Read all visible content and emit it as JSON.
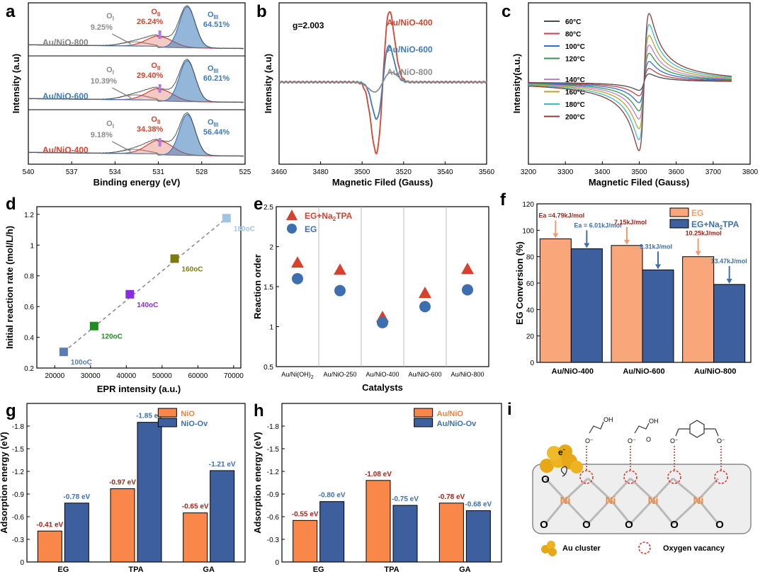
{
  "panels": {
    "a": "a",
    "b": "b",
    "c": "c",
    "d": "d",
    "e": "e",
    "f": "f",
    "g": "g",
    "h": "h",
    "i": "i"
  },
  "chart_data": [
    {
      "id": "a",
      "type": "line",
      "xlabel": "Binding energy (eV)",
      "ylabel": "Intensity (a.u)",
      "xlim": [
        540,
        525
      ],
      "xticks": [
        540,
        537,
        534,
        531,
        528,
        525
      ],
      "subplots": [
        {
          "sample": "Au/NiO-800",
          "O_I": "9.25%",
          "O_II": "26.24%",
          "O_III": "64.51%"
        },
        {
          "sample": "Au/NiO-600",
          "O_I": "10.39%",
          "O_II": "29.40%",
          "O_III": "60.21%"
        },
        {
          "sample": "Au/NiO-400",
          "O_I": "9.18%",
          "O_II": "34.38%",
          "O_III": "56.44%"
        }
      ],
      "peak_names": {
        "O_I": "O",
        "O_II": "O",
        "O_III": "O",
        "sub_I": "I",
        "sub_II": "II",
        "sub_III": "III"
      },
      "colors": {
        "O_I": "#8c8c8c",
        "O_II": "#d8412e",
        "O_III": "#3d7ab8",
        "sample_800": "#808080",
        "sample_600": "#3d7ab8",
        "sample_400": "#d8412e"
      }
    },
    {
      "id": "b",
      "type": "line",
      "xlabel": "Magnetic Filed (Gauss)",
      "ylabel": "Intensity (a.u)",
      "xlim": [
        3460,
        3560
      ],
      "xticks": [
        3460,
        3480,
        3500,
        3520,
        3540,
        3560
      ],
      "annotation": "g=2.003",
      "series": [
        {
          "name": "Au/NiO-400",
          "color": "#d8412e",
          "amp": 1.0,
          "center": 3510,
          "width": 3.2
        },
        {
          "name": "Au/NiO-600",
          "color": "#3d7ab8",
          "amp": 0.52,
          "center": 3510,
          "width": 3.0
        },
        {
          "name": "Au/NiO-800",
          "color": "#8c8c8c",
          "amp": 0.14,
          "center": 3510,
          "width": 4.0
        }
      ]
    },
    {
      "id": "c",
      "type": "line",
      "xlabel": "Magnetic Filed (Gauss)",
      "ylabel": "Intensity(a.u.)",
      "xlim": [
        3200,
        3800
      ],
      "xticks": [
        3200,
        3300,
        3400,
        3500,
        3600,
        3700,
        3800
      ],
      "series": [
        {
          "name": "60°C",
          "color": "#4a4a4a",
          "amp": 0.12
        },
        {
          "name": "80°C",
          "color": "#c8424e",
          "amp": 0.2
        },
        {
          "name": "100°C",
          "color": "#2f6fd0",
          "amp": 0.3
        },
        {
          "name": "120°C",
          "color": "#2e9a47",
          "amp": 0.42
        },
        {
          "name": "140°C",
          "color": "#c77bd9",
          "amp": 0.54
        },
        {
          "name": "160°C",
          "color": "#b5a52a",
          "amp": 0.68
        },
        {
          "name": "180°C",
          "color": "#3bbdc4",
          "amp": 0.84
        },
        {
          "name": "200°C",
          "color": "#8b3b3b",
          "amp": 1.0
        }
      ]
    },
    {
      "id": "d",
      "type": "scatter",
      "xlabel": "EPR intensity (a.u.)",
      "ylabel": "Initial reaction rate (mol/L/h)",
      "xlim": [
        15000,
        72000
      ],
      "ylim": [
        0.2,
        1.25
      ],
      "xticks": [
        20000,
        30000,
        40000,
        50000,
        60000,
        70000
      ],
      "yticks": [
        0.2,
        0.4,
        0.6,
        0.8,
        1.0,
        1.2
      ],
      "points": [
        {
          "x": 22500,
          "y": 0.305,
          "label": "100oC",
          "color": "#5b7bb5"
        },
        {
          "x": 31000,
          "y": 0.473,
          "label": "120oC",
          "color": "#1e8c1e"
        },
        {
          "x": 41000,
          "y": 0.68,
          "label": "140oC",
          "color": "#8a2be2"
        },
        {
          "x": 53500,
          "y": 0.912,
          "label": "160oC",
          "color": "#7b7b12"
        },
        {
          "x": 68000,
          "y": 1.175,
          "label": "180oC",
          "color": "#9fc4e4"
        }
      ],
      "fit": [
        [
          22500,
          0.305
        ],
        [
          68000,
          1.175
        ]
      ]
    },
    {
      "id": "e",
      "type": "scatter",
      "xlabel": "Catalysts",
      "ylabel": "Reaction order",
      "ylim": [
        0.5,
        2.5
      ],
      "yticks": [
        0.5,
        1.0,
        1.5,
        2.0,
        2.5
      ],
      "categories": [
        "Au/Ni(OH)",
        "Au/NiO-250",
        "Au/NiO-400",
        "Au/NiO-600",
        "Au/NiO-800"
      ],
      "series": [
        {
          "name": "EG+Na TPA",
          "marker": "triangle",
          "color": "#d8412e",
          "values": [
            1.8,
            1.71,
            1.12,
            1.42,
            1.72
          ]
        },
        {
          "name": "EG",
          "marker": "circle",
          "color": "#3d6fb0",
          "values": [
            1.6,
            1.45,
            1.05,
            1.25,
            1.46
          ]
        }
      ]
    },
    {
      "id": "f",
      "type": "bar",
      "ylabel": "EG Conversion (%)",
      "ylim": [
        0,
        120
      ],
      "yticks": [
        0,
        20,
        40,
        60,
        80,
        100,
        120
      ],
      "categories": [
        "Au/NiO-400",
        "Au/NiO-600",
        "Au/NiO-800"
      ],
      "series": [
        {
          "name": "EG",
          "color": "#f9a77a",
          "values": [
            93.5,
            88.5,
            80.0
          ],
          "ea": [
            "Ea =4.79kJ/mol",
            "7.15kJ/mol",
            "10.25kJ/mol"
          ],
          "ea_color": "#a4231a"
        },
        {
          "name": "EG+Na TPA",
          "color": "#3d5f9e",
          "values": [
            86.0,
            70.0,
            59.0
          ],
          "ea": [
            "Ea = 6.01kJ/mol",
            "9.31kJ/mol",
            "13.47kJ/mol"
          ],
          "ea_color": "#3d6fb0"
        }
      ]
    },
    {
      "id": "g",
      "type": "bar",
      "ylabel": "Adsorption energy (eV)",
      "ylim": [
        0,
        -2.1
      ],
      "yticks": [
        0.0,
        -0.3,
        -0.6,
        -0.9,
        -1.2,
        -1.5,
        -1.8
      ],
      "categories": [
        "EG",
        "TPA",
        "GA"
      ],
      "series": [
        {
          "name": "NiO",
          "color": "#f9874a",
          "values": [
            -0.41,
            -0.97,
            -0.65
          ],
          "labels": [
            "-0.41 eV",
            "-0.97 eV",
            "-0.65 eV"
          ],
          "label_color": "#a4231a"
        },
        {
          "name": "NiO-Ov",
          "color": "#3d5f9e",
          "values": [
            -0.78,
            -1.85,
            -1.21
          ],
          "labels": [
            "-0.78 eV",
            "-1.85 eV",
            "-1.21 eV"
          ],
          "label_color": "#3d6fb0"
        }
      ]
    },
    {
      "id": "h",
      "type": "bar",
      "ylabel": "Adsorption energy (eV)",
      "ylim": [
        0,
        -2.1
      ],
      "yticks": [
        0.0,
        -0.3,
        -0.6,
        -0.9,
        -1.2,
        -1.5,
        -1.8
      ],
      "categories": [
        "EG",
        "TPA",
        "GA"
      ],
      "series": [
        {
          "name": "Au/NiO",
          "color": "#f9874a",
          "values": [
            -0.55,
            -1.08,
            -0.78
          ],
          "labels": [
            "-0.55 eV",
            "-1.08 eV",
            "-0.78 eV"
          ],
          "label_color": "#a4231a"
        },
        {
          "name": "Au/NiO-Ov",
          "color": "#3d5f9e",
          "values": [
            -0.8,
            -0.75,
            -0.68
          ],
          "labels": [
            "-0.80 eV",
            "-0.75 eV",
            "-0.68 eV"
          ],
          "label_color": "#3d6fb0"
        }
      ]
    }
  ],
  "schematic": {
    "atoms_o": [
      "O",
      "O",
      "O",
      "O",
      "O",
      "O",
      "O"
    ],
    "atoms_ni": [
      "Ni",
      "Ni",
      "Ni",
      "Ni"
    ],
    "electron": "e",
    "electron_sup": "-",
    "legend_au": "Au cluster",
    "legend_vacancy": "Oxygen vacancy",
    "colors": {
      "au": "#e6a817",
      "ni": "#f08a3c",
      "vacancy": "#d83a2e",
      "slab": "#eeeeee"
    }
  }
}
